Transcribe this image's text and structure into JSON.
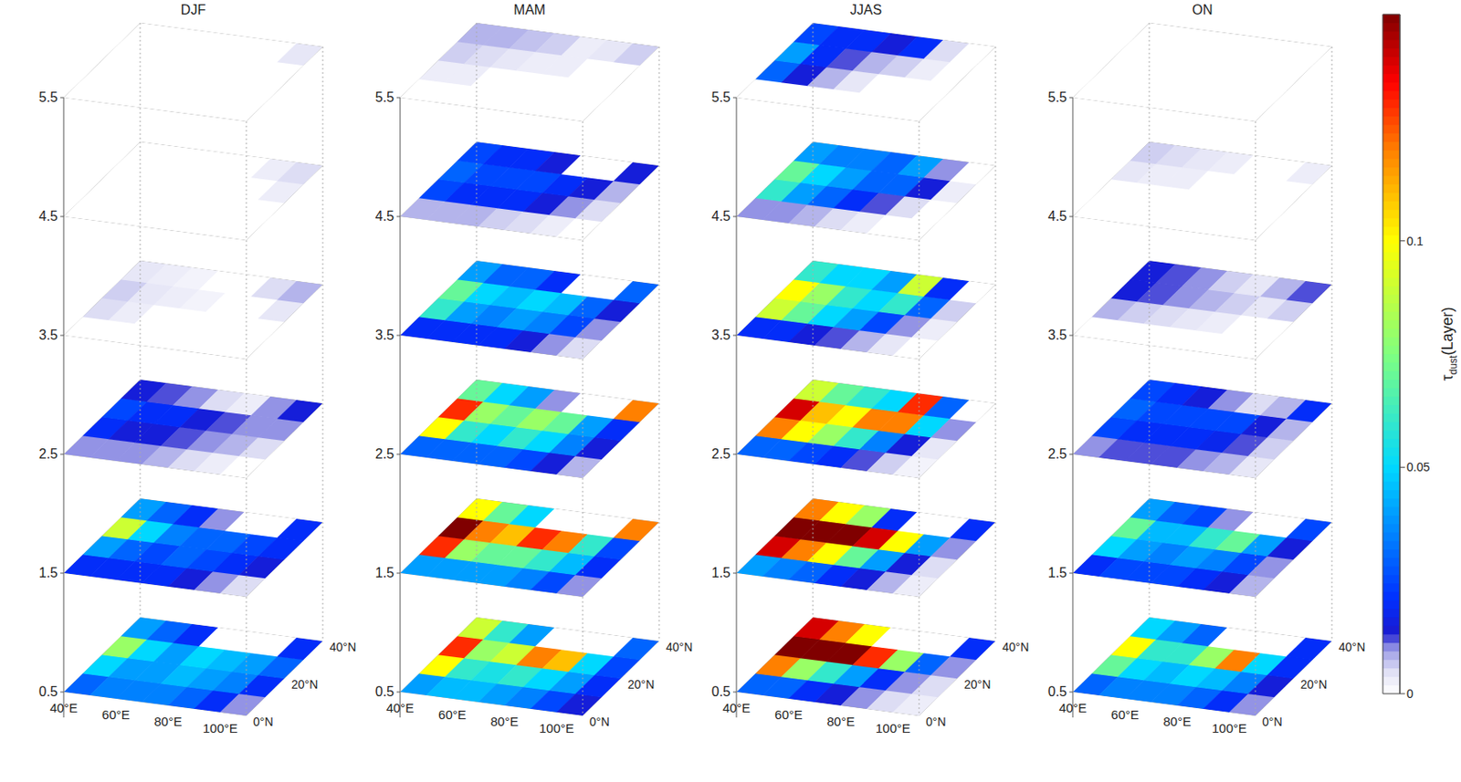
{
  "chart_data": {
    "type": "heatmap",
    "xlim": [
      40,
      110
    ],
    "ylim": [
      0,
      40
    ],
    "xticks": [
      {
        "value": 40,
        "label": "40°E"
      },
      {
        "value": 60,
        "label": "60°E"
      },
      {
        "value": 80,
        "label": "80°E"
      },
      {
        "value": 100,
        "label": "100°E"
      }
    ],
    "yticks": [
      {
        "value": 0,
        "label": "0°N"
      },
      {
        "value": 20,
        "label": "20°N"
      },
      {
        "value": 40,
        "label": "40°N"
      }
    ],
    "zticks": [
      0.5,
      1.5,
      2.5,
      3.5,
      4.5,
      5.5
    ],
    "lon": [
      45,
      55,
      65,
      75,
      85,
      95,
      105
    ],
    "lat": [
      5,
      15,
      25,
      35
    ],
    "colorbar": {
      "label": "τdust(Layer)",
      "range": [
        0,
        0.15
      ],
      "ticks": [
        0,
        0.05,
        0.1
      ]
    },
    "panels": [
      {
        "title": "DJF",
        "layers": [
          [
            [
              0.03,
              0.035,
              0.035,
              0.035,
              0.03,
              0.02,
              0.01
            ],
            [
              0.05,
              0.04,
              0.04,
              0.045,
              0.04,
              0.035,
              0.02
            ],
            [
              0.08,
              0.05,
              0.04,
              0.05,
              0.045,
              0.04,
              0.03
            ],
            [
              0.04,
              0.03,
              0.02,
              0,
              0,
              0,
              0.02
            ]
          ],
          [
            [
              0.02,
              0.02,
              0.02,
              0.02,
              0.015,
              0.01,
              0.005
            ],
            [
              0.04,
              0.03,
              0.025,
              0.03,
              0.025,
              0.02,
              0.015
            ],
            [
              0.09,
              0.05,
              0.035,
              0.03,
              0.03,
              0.025,
              0.02
            ],
            [
              0.04,
              0.03,
              0.02,
              0.01,
              0,
              0,
              0.02
            ]
          ],
          [
            [
              0.01,
              0.01,
              0.01,
              0.008,
              0.005,
              0.003,
              0
            ],
            [
              0.02,
              0.015,
              0.015,
              0.012,
              0.01,
              0.008,
              0.005
            ],
            [
              0.025,
              0.02,
              0.02,
              0.015,
              0.012,
              0.01,
              0.01
            ],
            [
              0.015,
              0.012,
              0.01,
              0.005,
              0.003,
              0.01,
              0.015
            ]
          ],
          [
            [
              0,
              0,
              0,
              0,
              0,
              0,
              0
            ],
            [
              0.005,
              0.003,
              0,
              0,
              0,
              0,
              0
            ],
            [
              0.006,
              0.004,
              0.003,
              0.002,
              0,
              0,
              0.004
            ],
            [
              0.004,
              0.003,
              0.002,
              0,
              0,
              0.005,
              0.008
            ]
          ],
          [
            [
              0,
              0,
              0,
              0,
              0,
              0,
              0
            ],
            [
              0,
              0,
              0,
              0,
              0,
              0,
              0
            ],
            [
              0,
              0,
              0,
              0,
              0,
              0,
              0.003
            ],
            [
              0,
              0,
              0,
              0,
              0,
              0.003,
              0.005
            ]
          ],
          [
            [
              0,
              0,
              0,
              0,
              0,
              0,
              0
            ],
            [
              0,
              0,
              0,
              0,
              0,
              0,
              0
            ],
            [
              0,
              0,
              0,
              0,
              0,
              0,
              0
            ],
            [
              0,
              0,
              0,
              0,
              0,
              0,
              0.004
            ]
          ]
        ]
      },
      {
        "title": "MAM",
        "layers": [
          [
            [
              0.04,
              0.045,
              0.045,
              0.04,
              0.035,
              0.025,
              0.015
            ],
            [
              0.1,
              0.06,
              0.055,
              0.06,
              0.05,
              0.04,
              0.02
            ],
            [
              0.13,
              0.08,
              0.09,
              0.12,
              0.11,
              0.05,
              0.025
            ],
            [
              0.09,
              0.06,
              0.04,
              0,
              0,
              0,
              0.03
            ]
          ],
          [
            [
              0.04,
              0.04,
              0.04,
              0.04,
              0.035,
              0.025,
              0.01
            ],
            [
              0.13,
              0.08,
              0.07,
              0.07,
              0.06,
              0.045,
              0.02
            ],
            [
              0.15,
              0.12,
              0.11,
              0.13,
              0.12,
              0.06,
              0.025
            ],
            [
              0.1,
              0.07,
              0.05,
              0,
              0,
              0,
              0.12
            ]
          ],
          [
            [
              0.03,
              0.03,
              0.03,
              0.03,
              0.025,
              0.015,
              0.008
            ],
            [
              0.1,
              0.06,
              0.05,
              0.06,
              0.05,
              0.035,
              0.015
            ],
            [
              0.13,
              0.08,
              0.07,
              0.08,
              0.07,
              0.04,
              0.02
            ],
            [
              0.07,
              0.05,
              0.04,
              0.01,
              0,
              0,
              0.12
            ]
          ],
          [
            [
              0.02,
              0.02,
              0.02,
              0.02,
              0.015,
              0.01,
              0.005
            ],
            [
              0.06,
              0.04,
              0.035,
              0.04,
              0.035,
              0.025,
              0.01
            ],
            [
              0.07,
              0.05,
              0.045,
              0.05,
              0.045,
              0.03,
              0.015
            ],
            [
              0.04,
              0.03,
              0.03,
              0.02,
              0,
              0,
              0.03
            ]
          ],
          [
            [
              0.008,
              0.008,
              0.008,
              0.006,
              0.005,
              0.003,
              0
            ],
            [
              0.025,
              0.02,
              0.02,
              0.02,
              0.015,
              0.01,
              0.005
            ],
            [
              0.03,
              0.025,
              0.025,
              0.025,
              0.02,
              0.015,
              0.008
            ],
            [
              0.025,
              0.02,
              0.02,
              0.015,
              0,
              0,
              0.015
            ]
          ],
          [
            [
              0,
              0,
              0,
              0,
              0,
              0,
              0
            ],
            [
              0.003,
              0.003,
              0,
              0,
              0,
              0,
              0
            ],
            [
              0.006,
              0.005,
              0.004,
              0.003,
              0.003,
              0,
              0
            ],
            [
              0.008,
              0.008,
              0.007,
              0.006,
              0.003,
              0.004,
              0.006
            ]
          ]
        ]
      },
      {
        "title": "JJAS",
        "layers": [
          [
            [
              0.03,
              0.03,
              0.02,
              0.015,
              0.01,
              0.005,
              0.003
            ],
            [
              0.12,
              0.08,
              0.06,
              0.04,
              0.02,
              0.01,
              0.005
            ],
            [
              0.15,
              0.15,
              0.15,
              0.13,
              0.08,
              0.03,
              0.01
            ],
            [
              0.14,
              0.12,
              0.1,
              0,
              0,
              0,
              0.02
            ]
          ],
          [
            [
              0.04,
              0.035,
              0.03,
              0.02,
              0.015,
              0.008,
              0.003
            ],
            [
              0.14,
              0.12,
              0.1,
              0.07,
              0.04,
              0.015,
              0.005
            ],
            [
              0.15,
              0.15,
              0.15,
              0.14,
              0.1,
              0.04,
              0.01
            ],
            [
              0.12,
              0.1,
              0.08,
              0.02,
              0,
              0,
              0.02
            ]
          ],
          [
            [
              0.03,
              0.03,
              0.025,
              0.02,
              0.012,
              0.006,
              0.002
            ],
            [
              0.12,
              0.1,
              0.08,
              0.06,
              0.035,
              0.015,
              0.004
            ],
            [
              0.14,
              0.11,
              0.1,
              0.12,
              0.12,
              0.05,
              0.01
            ],
            [
              0.09,
              0.07,
              0.06,
              0.05,
              0.13,
              0.03,
              0
            ]
          ],
          [
            [
              0.02,
              0.02,
              0.015,
              0.012,
              0.008,
              0.004,
              0
            ],
            [
              0.09,
              0.07,
              0.05,
              0.04,
              0.025,
              0.01,
              0.003
            ],
            [
              0.1,
              0.08,
              0.06,
              0.05,
              0.06,
              0.03,
              0.006
            ],
            [
              0.06,
              0.05,
              0.05,
              0.04,
              0.09,
              0.02,
              0
            ]
          ],
          [
            [
              0.01,
              0.01,
              0.008,
              0.005,
              0.003,
              0,
              0
            ],
            [
              0.06,
              0.04,
              0.03,
              0.02,
              0.012,
              0.005,
              0
            ],
            [
              0.07,
              0.05,
              0.04,
              0.03,
              0.03,
              0.015,
              0.003
            ],
            [
              0.04,
              0.035,
              0.035,
              0.03,
              0.04,
              0.01,
              0
            ]
          ],
          [
            [
              0,
              0,
              0,
              0,
              0,
              0,
              0
            ],
            [
              0.03,
              0.015,
              0.008,
              0.004,
              0,
              0,
              0
            ],
            [
              0.04,
              0.02,
              0.012,
              0.008,
              0.006,
              0.003,
              0
            ],
            [
              0.025,
              0.02,
              0.02,
              0.015,
              0.02,
              0.005,
              0
            ]
          ]
        ]
      },
      {
        "title": "ON",
        "layers": [
          [
            [
              0.03,
              0.035,
              0.035,
              0.035,
              0.03,
              0.02,
              0.01
            ],
            [
              0.07,
              0.05,
              0.045,
              0.05,
              0.045,
              0.035,
              0.015
            ],
            [
              0.1,
              0.06,
              0.06,
              0.08,
              0.12,
              0.05,
              0.02
            ],
            [
              0.05,
              0.04,
              0.03,
              0,
              0,
              0,
              0.02
            ]
          ],
          [
            [
              0.02,
              0.025,
              0.025,
              0.025,
              0.02,
              0.015,
              0.008
            ],
            [
              0.05,
              0.04,
              0.035,
              0.04,
              0.035,
              0.025,
              0.01
            ],
            [
              0.07,
              0.045,
              0.045,
              0.06,
              0.07,
              0.04,
              0.015
            ],
            [
              0.04,
              0.03,
              0.025,
              0.01,
              0,
              0,
              0.025
            ]
          ],
          [
            [
              0.01,
              0.012,
              0.012,
              0.012,
              0.01,
              0.008,
              0.004
            ],
            [
              0.025,
              0.02,
              0.02,
              0.02,
              0.018,
              0.012,
              0.006
            ],
            [
              0.03,
              0.025,
              0.025,
              0.025,
              0.025,
              0.015,
              0.008
            ],
            [
              0.025,
              0.02,
              0.015,
              0.01,
              0.005,
              0.008,
              0.02
            ]
          ],
          [
            [
              0,
              0,
              0,
              0,
              0,
              0,
              0
            ],
            [
              0.008,
              0.006,
              0.005,
              0.004,
              0.003,
              0,
              0
            ],
            [
              0.015,
              0.012,
              0.01,
              0.008,
              0.006,
              0.004,
              0.006
            ],
            [
              0.015,
              0.012,
              0.01,
              0.006,
              0.004,
              0.008,
              0.012
            ]
          ],
          [
            [
              0,
              0,
              0,
              0,
              0,
              0,
              0
            ],
            [
              0,
              0,
              0,
              0,
              0,
              0,
              0
            ],
            [
              0.004,
              0.003,
              0.003,
              0,
              0,
              0,
              0
            ],
            [
              0.006,
              0.005,
              0.004,
              0.003,
              0,
              0,
              0.003
            ]
          ],
          [
            [
              0,
              0,
              0,
              0,
              0,
              0,
              0
            ],
            [
              0,
              0,
              0,
              0,
              0,
              0,
              0
            ],
            [
              0,
              0,
              0,
              0,
              0,
              0,
              0
            ],
            [
              0,
              0,
              0,
              0,
              0,
              0,
              0
            ]
          ]
        ]
      }
    ]
  }
}
